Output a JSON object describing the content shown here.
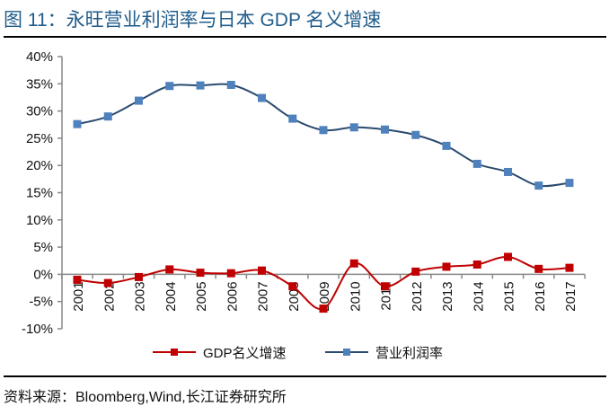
{
  "title": "图 11：永旺营业利润率与日本 GDP 名义增速",
  "source": "资料来源：Bloomberg,Wind,长江证券研究所",
  "chart_data": {
    "type": "line",
    "categories": [
      "2001",
      "2002",
      "2003",
      "2004",
      "2005",
      "2006",
      "2007",
      "2008",
      "2009",
      "2010",
      "2011",
      "2012",
      "2013",
      "2014",
      "2015",
      "2016",
      "2017"
    ],
    "ylim": [
      -10,
      40
    ],
    "yticks": [
      "-10%",
      "-5%",
      "0%",
      "5%",
      "10%",
      "15%",
      "20%",
      "25%",
      "30%",
      "35%",
      "40%"
    ],
    "ytick_values": [
      -10,
      -5,
      0,
      5,
      10,
      15,
      20,
      25,
      30,
      35,
      40
    ],
    "grid": false,
    "legend": "bottom",
    "series": [
      {
        "name": "GDP名义增速",
        "color": "#c00000",
        "values": [
          -1.0,
          -1.6,
          -0.5,
          0.9,
          0.3,
          0.2,
          0.7,
          -2.2,
          -6.3,
          2.0,
          -2.2,
          0.5,
          1.4,
          1.8,
          3.2,
          1.0,
          1.2
        ]
      },
      {
        "name": "营业利润率",
        "color": "#4f81bd",
        "line_color": "#2a4a6e",
        "values": [
          27.6,
          29.0,
          31.9,
          34.6,
          34.7,
          34.8,
          32.4,
          28.6,
          26.5,
          27.0,
          26.6,
          25.6,
          23.6,
          20.3,
          18.8,
          16.3,
          16.8
        ]
      }
    ]
  }
}
